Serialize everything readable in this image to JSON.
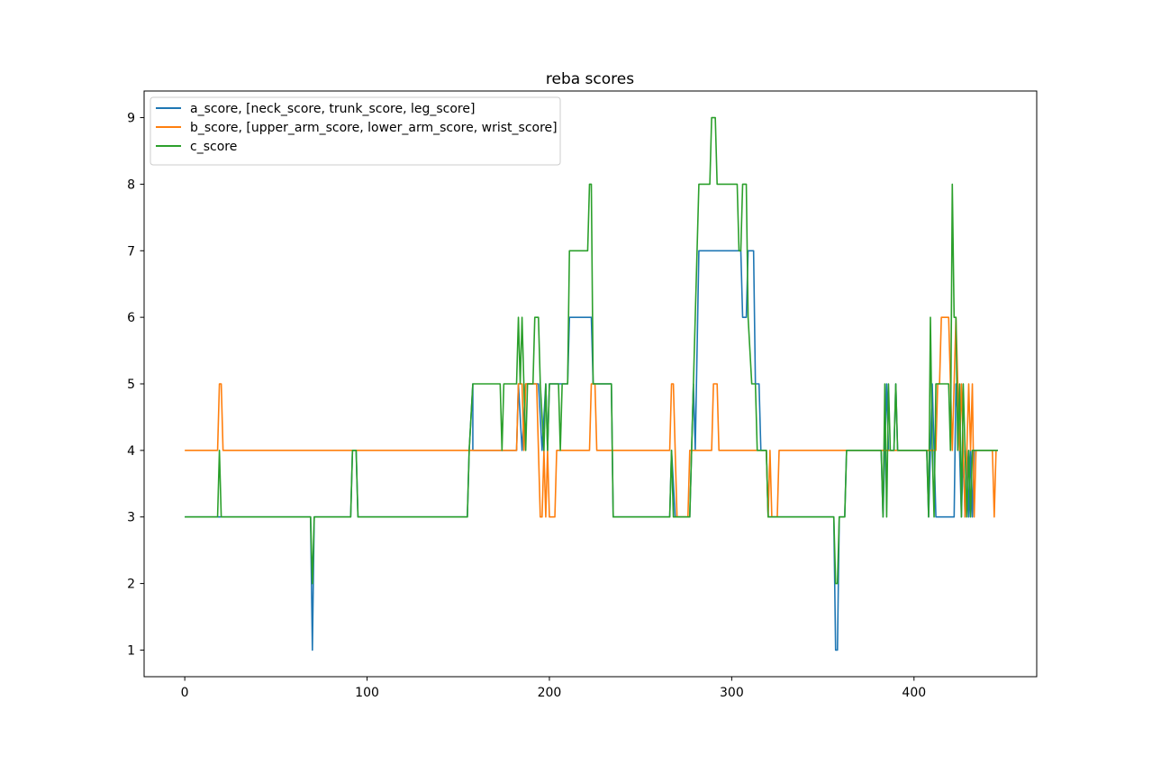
{
  "chart_data": {
    "type": "line",
    "title": "reba scores",
    "xlabel": "",
    "ylabel": "",
    "xlim": [
      -22.3,
      467.3
    ],
    "ylim": [
      0.6,
      9.4
    ],
    "xticks": [
      0,
      100,
      200,
      300,
      400
    ],
    "yticks": [
      1,
      2,
      3,
      4,
      5,
      6,
      7,
      8,
      9
    ],
    "legend_position": "upper left",
    "grid": false,
    "series": [
      {
        "name": "a_score, [neck_score, trunk_score, leg_score]",
        "color": "#1f77b4",
        "points": [
          [
            0,
            3
          ],
          [
            69,
            3
          ],
          [
            70,
            1
          ],
          [
            71,
            3
          ],
          [
            91,
            3
          ],
          [
            92,
            4
          ],
          [
            94,
            4
          ],
          [
            95,
            3
          ],
          [
            155,
            3
          ],
          [
            156,
            4
          ],
          [
            158,
            5
          ],
          [
            158,
            4
          ],
          [
            182,
            4
          ],
          [
            183,
            5
          ],
          [
            185,
            4
          ],
          [
            187,
            5
          ],
          [
            194,
            5
          ],
          [
            196,
            4
          ],
          [
            198,
            5
          ],
          [
            199,
            4
          ],
          [
            200,
            5
          ],
          [
            210,
            5
          ],
          [
            211,
            6
          ],
          [
            223,
            6
          ],
          [
            224,
            5
          ],
          [
            234,
            5
          ],
          [
            235,
            3
          ],
          [
            266,
            3
          ],
          [
            267,
            4
          ],
          [
            269,
            3
          ],
          [
            277,
            3
          ],
          [
            278,
            4
          ],
          [
            279,
            5
          ],
          [
            280,
            4
          ],
          [
            282,
            7
          ],
          [
            305,
            7
          ],
          [
            306,
            6
          ],
          [
            308,
            6
          ],
          [
            309,
            7
          ],
          [
            312,
            7
          ],
          [
            313,
            5
          ],
          [
            315,
            5
          ],
          [
            316,
            4
          ],
          [
            319,
            4
          ],
          [
            320,
            3
          ],
          [
            356,
            3
          ],
          [
            357,
            1
          ],
          [
            358,
            1
          ],
          [
            359,
            3
          ],
          [
            362,
            3
          ],
          [
            363,
            4
          ],
          [
            382,
            4
          ],
          [
            383,
            3
          ],
          [
            384,
            4
          ],
          [
            385,
            5
          ],
          [
            386,
            4
          ],
          [
            389,
            4
          ],
          [
            390,
            5
          ],
          [
            391,
            4
          ],
          [
            407,
            4
          ],
          [
            408,
            3
          ],
          [
            409,
            4
          ],
          [
            410,
            5
          ],
          [
            412,
            3
          ],
          [
            422,
            3
          ],
          [
            423,
            5
          ],
          [
            425,
            4
          ],
          [
            426,
            3
          ],
          [
            427,
            4
          ],
          [
            428,
            3
          ],
          [
            429,
            4
          ],
          [
            430,
            3
          ],
          [
            431,
            4
          ],
          [
            432,
            3
          ],
          [
            433,
            4
          ],
          [
            446,
            4
          ]
        ]
      },
      {
        "name": "b_score, [upper_arm_score, lower_arm_score, wrist_score]",
        "color": "#ff7f0e",
        "points": [
          [
            0,
            4
          ],
          [
            18,
            4
          ],
          [
            19,
            5
          ],
          [
            20,
            5
          ],
          [
            21,
            4
          ],
          [
            182,
            4
          ],
          [
            183,
            5
          ],
          [
            185,
            5
          ],
          [
            186,
            4
          ],
          [
            187,
            5
          ],
          [
            193,
            5
          ],
          [
            194,
            4
          ],
          [
            195,
            3
          ],
          [
            196,
            3
          ],
          [
            197,
            4
          ],
          [
            198,
            3
          ],
          [
            199,
            4
          ],
          [
            200,
            3
          ],
          [
            203,
            3
          ],
          [
            204,
            4
          ],
          [
            222,
            4
          ],
          [
            223,
            5
          ],
          [
            225,
            5
          ],
          [
            226,
            4
          ],
          [
            266,
            4
          ],
          [
            267,
            5
          ],
          [
            268,
            5
          ],
          [
            269,
            4
          ],
          [
            270,
            3
          ],
          [
            276,
            3
          ],
          [
            277,
            4
          ],
          [
            289,
            4
          ],
          [
            290,
            5
          ],
          [
            292,
            5
          ],
          [
            293,
            4
          ],
          [
            319,
            4
          ],
          [
            320,
            3
          ],
          [
            321,
            4
          ],
          [
            322,
            3
          ],
          [
            325,
            3
          ],
          [
            326,
            4
          ],
          [
            412,
            4
          ],
          [
            413,
            5
          ],
          [
            414,
            5
          ],
          [
            415,
            6
          ],
          [
            419,
            6
          ],
          [
            420,
            5
          ],
          [
            421,
            4
          ],
          [
            422,
            5
          ],
          [
            423,
            6
          ],
          [
            424,
            5
          ],
          [
            425,
            4
          ],
          [
            426,
            5
          ],
          [
            427,
            4
          ],
          [
            428,
            3
          ],
          [
            429,
            4
          ],
          [
            430,
            5
          ],
          [
            431,
            4
          ],
          [
            432,
            5
          ],
          [
            433,
            3
          ],
          [
            434,
            4
          ],
          [
            443,
            4
          ],
          [
            444,
            3
          ],
          [
            445,
            4
          ]
        ]
      },
      {
        "name": "c_score",
        "color": "#2ca02c",
        "points": [
          [
            0,
            3
          ],
          [
            18,
            3
          ],
          [
            19,
            4
          ],
          [
            20,
            3
          ],
          [
            69,
            3
          ],
          [
            70,
            2
          ],
          [
            71,
            3
          ],
          [
            91,
            3
          ],
          [
            92,
            4
          ],
          [
            94,
            4
          ],
          [
            95,
            3
          ],
          [
            155,
            3
          ],
          [
            156,
            4
          ],
          [
            158,
            5
          ],
          [
            173,
            5
          ],
          [
            174,
            4
          ],
          [
            175,
            5
          ],
          [
            182,
            5
          ],
          [
            183,
            6
          ],
          [
            184,
            5
          ],
          [
            185,
            6
          ],
          [
            186,
            5
          ],
          [
            187,
            4
          ],
          [
            188,
            5
          ],
          [
            191,
            5
          ],
          [
            192,
            6
          ],
          [
            194,
            6
          ],
          [
            195,
            5
          ],
          [
            197,
            4
          ],
          [
            198,
            5
          ],
          [
            199,
            4
          ],
          [
            200,
            5
          ],
          [
            205,
            5
          ],
          [
            206,
            4
          ],
          [
            207,
            5
          ],
          [
            210,
            5
          ],
          [
            211,
            7
          ],
          [
            221,
            7
          ],
          [
            222,
            8
          ],
          [
            223,
            8
          ],
          [
            224,
            5
          ],
          [
            234,
            5
          ],
          [
            235,
            3
          ],
          [
            266,
            3
          ],
          [
            267,
            4
          ],
          [
            268,
            3
          ],
          [
            277,
            3
          ],
          [
            278,
            4
          ],
          [
            280,
            6
          ],
          [
            281,
            7
          ],
          [
            282,
            8
          ],
          [
            288,
            8
          ],
          [
            289,
            9
          ],
          [
            291,
            9
          ],
          [
            292,
            8
          ],
          [
            303,
            8
          ],
          [
            304,
            7
          ],
          [
            305,
            7
          ],
          [
            306,
            8
          ],
          [
            308,
            8
          ],
          [
            309,
            6
          ],
          [
            311,
            5
          ],
          [
            313,
            5
          ],
          [
            314,
            4
          ],
          [
            319,
            4
          ],
          [
            320,
            3
          ],
          [
            356,
            3
          ],
          [
            357,
            2
          ],
          [
            358,
            2
          ],
          [
            359,
            3
          ],
          [
            362,
            3
          ],
          [
            363,
            4
          ],
          [
            382,
            4
          ],
          [
            383,
            3
          ],
          [
            384,
            5
          ],
          [
            385,
            3
          ],
          [
            386,
            5
          ],
          [
            387,
            4
          ],
          [
            389,
            4
          ],
          [
            390,
            5
          ],
          [
            391,
            4
          ],
          [
            407,
            4
          ],
          [
            408,
            3
          ],
          [
            409,
            6
          ],
          [
            410,
            4
          ],
          [
            411,
            3
          ],
          [
            412,
            5
          ],
          [
            419,
            5
          ],
          [
            420,
            4
          ],
          [
            421,
            8
          ],
          [
            422,
            6
          ],
          [
            423,
            6
          ],
          [
            424,
            4
          ],
          [
            425,
            5
          ],
          [
            426,
            3
          ],
          [
            427,
            5
          ],
          [
            428,
            4
          ],
          [
            429,
            3
          ],
          [
            430,
            4
          ],
          [
            431,
            3
          ],
          [
            432,
            4
          ],
          [
            446,
            4
          ]
        ]
      }
    ]
  }
}
